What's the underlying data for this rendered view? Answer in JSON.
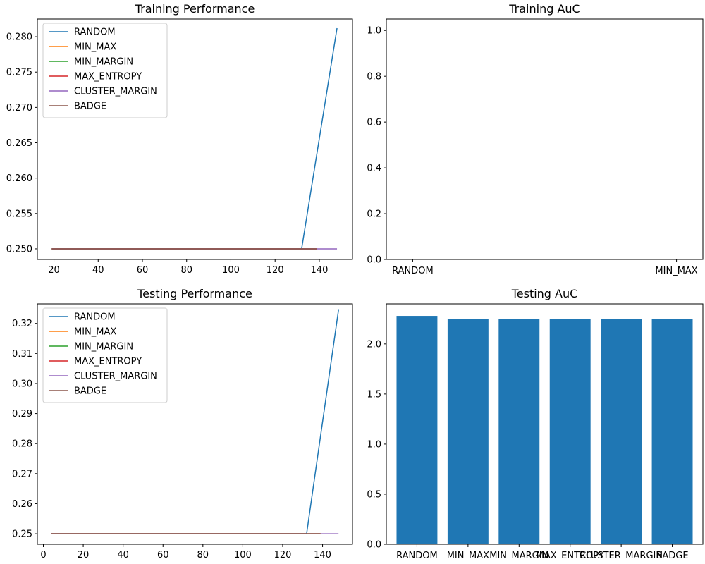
{
  "palette": {
    "RANDOM": "#1f77b4",
    "MIN_MAX": "#ff7f0e",
    "MIN_MARGIN": "#2ca02c",
    "MAX_ENTROPY": "#d62728",
    "CLUSTER_MARGIN": "#9467bd",
    "BADGE": "#8c564b"
  },
  "chart_data": [
    {
      "id": "train_perf",
      "type": "line",
      "title": "Training Performance",
      "xlim": [
        12.5,
        155
      ],
      "ylim": [
        0.2485,
        0.2825
      ],
      "xticks": [
        20,
        40,
        60,
        80,
        100,
        120,
        140
      ],
      "yticks": [
        0.25,
        0.255,
        0.26,
        0.265,
        0.27,
        0.275,
        0.28
      ],
      "ytick_decimals": 3,
      "legend_position": "upper left",
      "series": [
        {
          "name": "RANDOM",
          "x": [
            19,
            132,
            148
          ],
          "y": [
            0.25,
            0.25,
            0.2812
          ]
        },
        {
          "name": "MIN_MAX",
          "x": [
            19,
            139
          ],
          "y": [
            0.25,
            0.25
          ]
        },
        {
          "name": "MIN_MARGIN",
          "x": [
            19,
            139
          ],
          "y": [
            0.25,
            0.25
          ]
        },
        {
          "name": "MAX_ENTROPY",
          "x": [
            19,
            139
          ],
          "y": [
            0.25,
            0.25
          ]
        },
        {
          "name": "CLUSTER_MARGIN",
          "x": [
            19,
            148
          ],
          "y": [
            0.25,
            0.25
          ]
        },
        {
          "name": "BADGE",
          "x": [
            19,
            139
          ],
          "y": [
            0.25,
            0.25
          ]
        }
      ]
    },
    {
      "id": "train_auc",
      "type": "bar",
      "title": "Training AuC",
      "categories": [
        "RANDOM",
        "MIN_MAX"
      ],
      "values": [
        0,
        0
      ],
      "xlim": [
        -0.1,
        1.1
      ],
      "ylim": [
        0,
        1.05
      ],
      "yticks": [
        0.0,
        0.2,
        0.4,
        0.6,
        0.8,
        1.0
      ],
      "ytick_decimals": 1,
      "color": "#1f77b4"
    },
    {
      "id": "test_perf",
      "type": "line",
      "title": "Testing Performance",
      "xlim": [
        -3,
        155
      ],
      "ylim": [
        0.2465,
        0.3265
      ],
      "xticks": [
        0,
        20,
        40,
        60,
        80,
        100,
        120,
        140
      ],
      "yticks": [
        0.25,
        0.26,
        0.27,
        0.28,
        0.29,
        0.3,
        0.31,
        0.32
      ],
      "ytick_decimals": 2,
      "legend_position": "upper left",
      "series": [
        {
          "name": "RANDOM",
          "x": [
            4,
            132,
            148
          ],
          "y": [
            0.25,
            0.25,
            0.3245
          ]
        },
        {
          "name": "MIN_MAX",
          "x": [
            4,
            139
          ],
          "y": [
            0.25,
            0.25
          ]
        },
        {
          "name": "MIN_MARGIN",
          "x": [
            4,
            139
          ],
          "y": [
            0.25,
            0.25
          ]
        },
        {
          "name": "MAX_ENTROPY",
          "x": [
            4,
            139
          ],
          "y": [
            0.25,
            0.25
          ]
        },
        {
          "name": "CLUSTER_MARGIN",
          "x": [
            4,
            148
          ],
          "y": [
            0.25,
            0.25
          ]
        },
        {
          "name": "BADGE",
          "x": [
            4,
            139
          ],
          "y": [
            0.25,
            0.25
          ]
        }
      ]
    },
    {
      "id": "test_auc",
      "type": "bar",
      "title": "Testing AuC",
      "categories": [
        "RANDOM",
        "MIN_MAX",
        "MIN_MARGIN",
        "MAX_ENTROPY",
        "CLUSTER_MARGIN",
        "BADGE"
      ],
      "values": [
        2.28,
        2.25,
        2.25,
        2.25,
        2.25,
        2.25
      ],
      "xlim": [
        -0.6,
        5.6
      ],
      "ylim": [
        0,
        2.4
      ],
      "yticks": [
        0.0,
        0.5,
        1.0,
        1.5,
        2.0
      ],
      "ytick_decimals": 1,
      "color": "#1f77b4",
      "bar_width": 0.8
    }
  ]
}
